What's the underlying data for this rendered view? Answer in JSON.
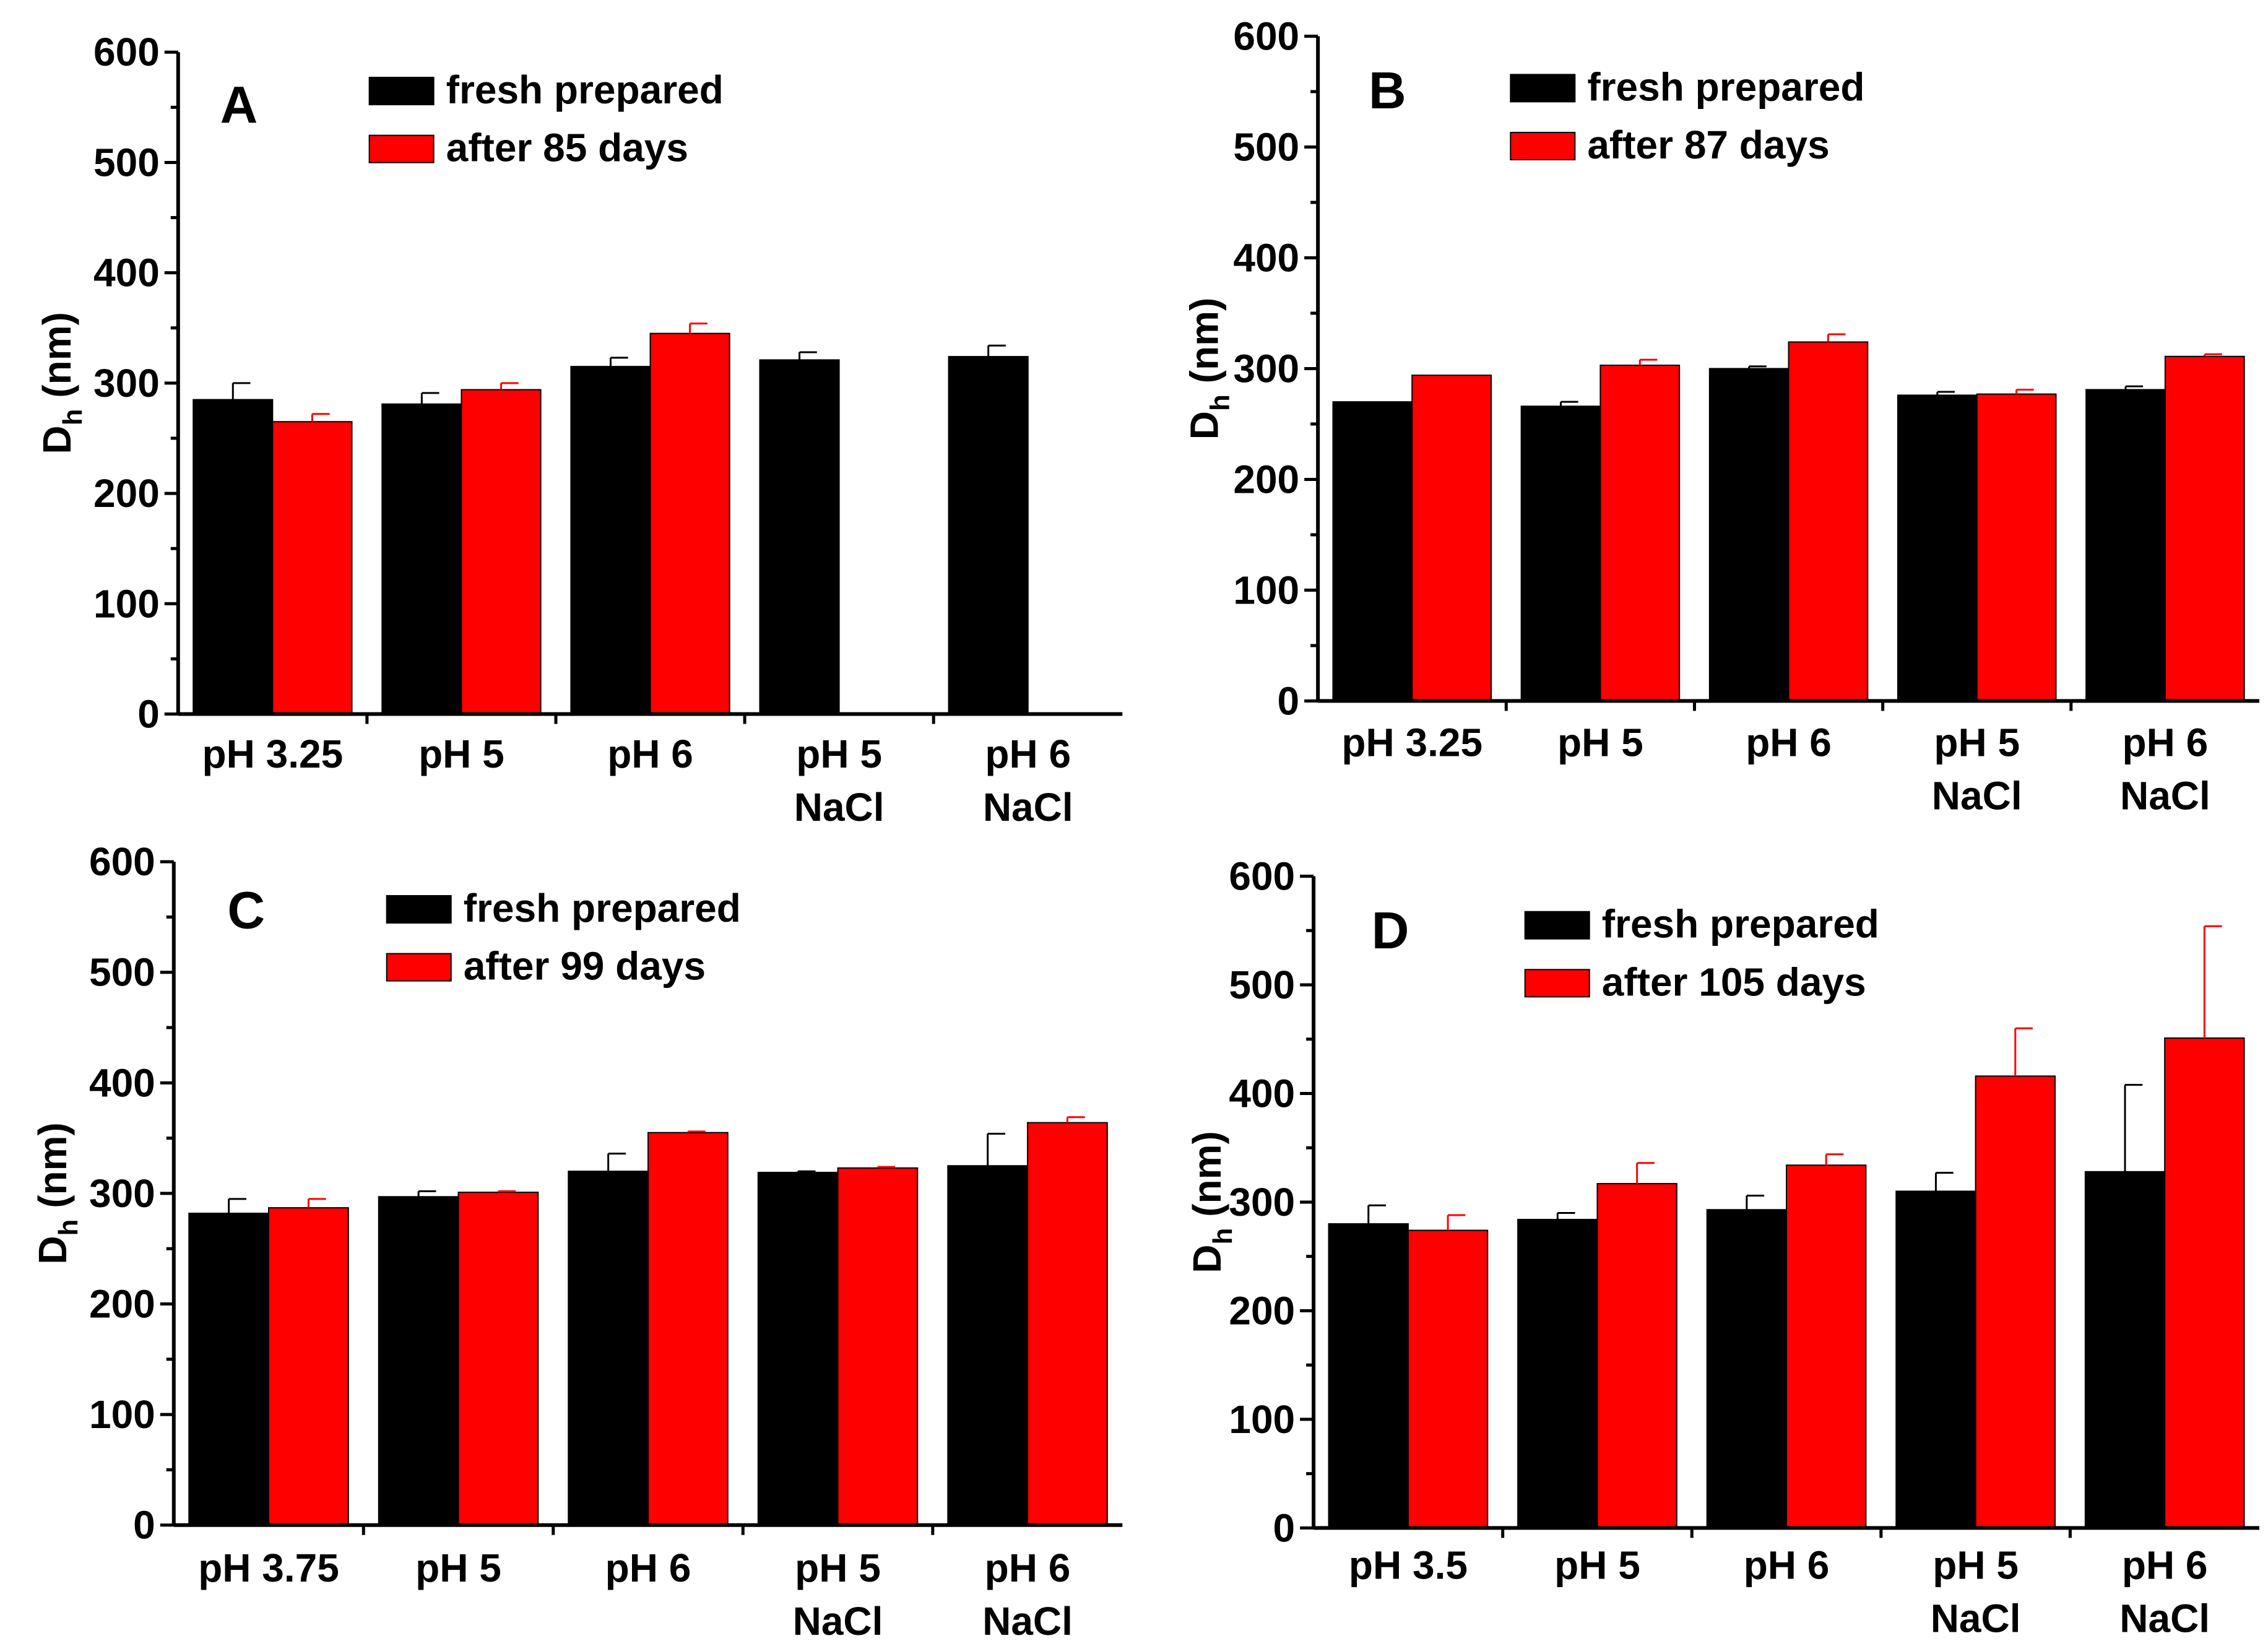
{
  "colors": {
    "fresh": "#000000",
    "aged": "#ff0000",
    "axis": "#000000"
  },
  "chart_data": [
    {
      "type": "bar",
      "panel": "A",
      "ylabel": "Dh (nm)",
      "ylabel_main": "D",
      "ylabel_sub": "h",
      "ylabel_unit": " (nm)",
      "ylim": [
        0,
        600
      ],
      "yticks": [
        "0",
        "100",
        "200",
        "300",
        "400",
        "500",
        "600"
      ],
      "categories": [
        [
          "pH 3.25"
        ],
        [
          "pH 5"
        ],
        [
          "pH 6"
        ],
        [
          "pH 5",
          "NaCl"
        ],
        [
          "pH 6",
          "NaCl"
        ]
      ],
      "series": [
        {
          "name": "fresh prepared",
          "color": "#000000",
          "values": [
            285,
            281,
            315,
            321,
            324
          ],
          "errors": [
            15,
            10,
            8,
            7,
            10
          ]
        },
        {
          "name": "after 85 days",
          "color": "#ff0000",
          "values": [
            265,
            294,
            345,
            null,
            null
          ],
          "errors": [
            7,
            6,
            9,
            null,
            null
          ]
        }
      ]
    },
    {
      "type": "bar",
      "panel": "B",
      "ylabel": "Dh (nm)",
      "ylabel_main": "D",
      "ylabel_sub": "h",
      "ylabel_unit": " (nm)",
      "ylim": [
        0,
        600
      ],
      "yticks": [
        "0",
        "100",
        "200",
        "300",
        "400",
        "500",
        "600"
      ],
      "categories": [
        [
          "pH 3.25"
        ],
        [
          "pH 5"
        ],
        [
          "pH 6"
        ],
        [
          "pH 5",
          "NaCl"
        ],
        [
          "pH 6",
          "NaCl"
        ]
      ],
      "series": [
        {
          "name": "fresh prepared",
          "color": "#000000",
          "values": [
            270,
            266,
            300,
            276,
            281
          ],
          "errors": [
            0,
            4,
            2,
            3,
            3
          ]
        },
        {
          "name": "after 87 days",
          "color": "#ff0000",
          "values": [
            294,
            303,
            324,
            277,
            311
          ],
          "errors": [
            0,
            5,
            7,
            4,
            2
          ]
        }
      ]
    },
    {
      "type": "bar",
      "panel": "C",
      "ylabel": "Dh (nm)",
      "ylabel_main": "D",
      "ylabel_sub": "h",
      "ylabel_unit": " (nm)",
      "ylim": [
        0,
        600
      ],
      "yticks": [
        "0",
        "100",
        "200",
        "300",
        "400",
        "500",
        "600"
      ],
      "categories": [
        [
          "pH 3.75"
        ],
        [
          "pH 5"
        ],
        [
          "pH 6"
        ],
        [
          "pH 5",
          "NaCl"
        ],
        [
          "pH 6",
          "NaCl"
        ]
      ],
      "series": [
        {
          "name": "fresh prepared",
          "color": "#000000",
          "values": [
            282,
            297,
            320,
            319,
            325
          ],
          "errors": [
            13,
            5,
            16,
            1,
            29
          ]
        },
        {
          "name": "after 99 days",
          "color": "#ff0000",
          "values": [
            287,
            301,
            355,
            323,
            364
          ],
          "errors": [
            8,
            1,
            1,
            1,
            5
          ]
        }
      ]
    },
    {
      "type": "bar",
      "panel": "D",
      "ylabel": "Dh (nm)",
      "ylabel_main": "D",
      "ylabel_sub": "h",
      "ylabel_unit": " (nm)",
      "ylim": [
        0,
        600
      ],
      "yticks": [
        "0",
        "100",
        "200",
        "300",
        "400",
        "500",
        "600"
      ],
      "categories": [
        [
          "pH 3.5"
        ],
        [
          "pH 5"
        ],
        [
          "pH 6"
        ],
        [
          "pH 5",
          "NaCl"
        ],
        [
          "pH 6",
          "NaCl"
        ]
      ],
      "series": [
        {
          "name": "fresh prepared",
          "color": "#000000",
          "values": [
            280,
            284,
            293,
            310,
            328
          ],
          "errors": [
            17,
            6,
            13,
            17,
            80
          ]
        },
        {
          "name": "after 105 days",
          "color": "#ff0000",
          "values": [
            274,
            317,
            334,
            416,
            451
          ],
          "errors": [
            14,
            19,
            10,
            44,
            103
          ]
        }
      ]
    }
  ]
}
